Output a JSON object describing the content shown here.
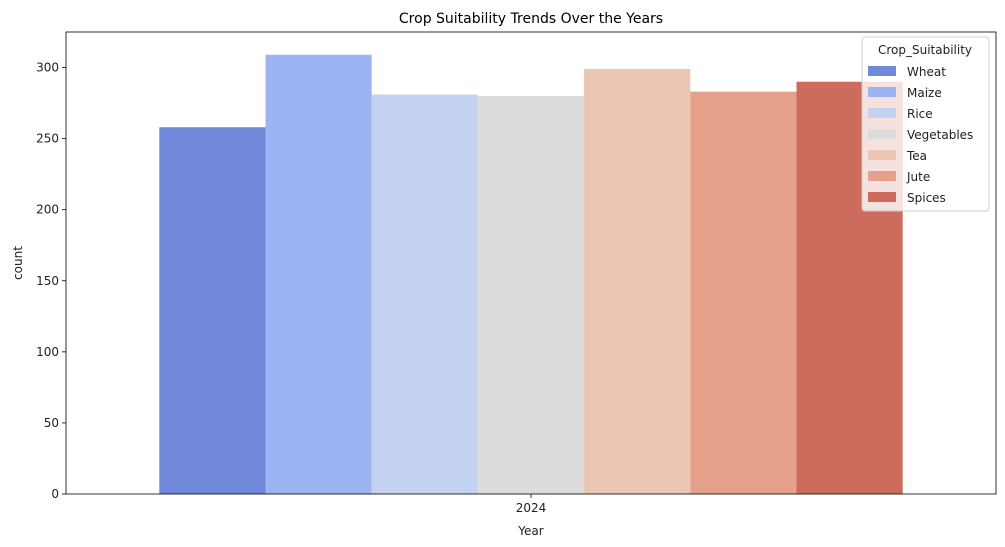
{
  "chart_data": {
    "type": "bar",
    "title": "Crop Suitability Trends Over the Years",
    "xlabel": "Year",
    "ylabel": "count",
    "categories": [
      "2024"
    ],
    "ylim": [
      0,
      325
    ],
    "yticks": [
      0,
      50,
      100,
      150,
      200,
      250,
      300
    ],
    "grid": false,
    "legend": {
      "title": "Crop_Suitability",
      "placement": "top-right"
    },
    "series": [
      {
        "name": "Wheat",
        "values": [
          258
        ],
        "color": "#7089da"
      },
      {
        "name": "Maize",
        "values": [
          309
        ],
        "color": "#9cb4f1"
      },
      {
        "name": "Rice",
        "values": [
          281
        ],
        "color": "#c2d2f0"
      },
      {
        "name": "Vegetables",
        "values": [
          280
        ],
        "color": "#dcdcdc"
      },
      {
        "name": "Tea",
        "values": [
          299
        ],
        "color": "#ecc6b4"
      },
      {
        "name": "Jute",
        "values": [
          283
        ],
        "color": "#e4a088"
      },
      {
        "name": "Spices",
        "values": [
          290
        ],
        "color": "#cd6b5d"
      }
    ]
  }
}
